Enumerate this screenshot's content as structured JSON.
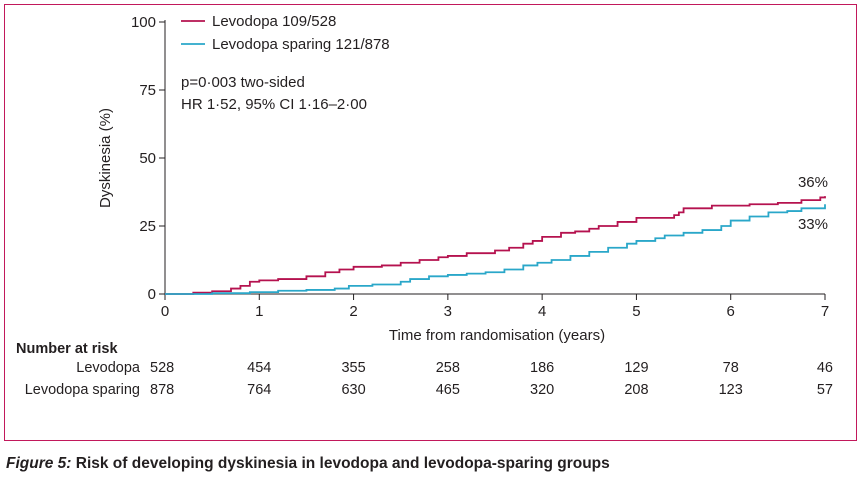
{
  "chart_data": {
    "type": "line",
    "xlabel": "Time from randomisation (years)",
    "ylabel": "Dyskinesia (%)",
    "xlim": [
      0,
      7
    ],
    "ylim": [
      0,
      100
    ],
    "xticks": [
      0,
      1,
      2,
      3,
      4,
      5,
      6,
      7
    ],
    "yticks": [
      0,
      25,
      50,
      75,
      100
    ],
    "grid": false,
    "legend_position": "top-left",
    "annotations": [
      "p=0·003 two-sided",
      "HR 1·52, 95% CI 1·16–2·00"
    ],
    "end_labels": [
      "36%",
      "33%"
    ],
    "series": [
      {
        "name": "Levodopa 109/528",
        "color": "#b5124f",
        "x": [
          0,
          0.3,
          0.5,
          0.7,
          0.8,
          0.9,
          1.0,
          1.2,
          1.5,
          1.7,
          1.85,
          2.0,
          2.3,
          2.5,
          2.7,
          2.9,
          3.0,
          3.2,
          3.5,
          3.65,
          3.8,
          3.9,
          4.0,
          4.2,
          4.35,
          4.5,
          4.6,
          4.8,
          5.0,
          5.4,
          5.45,
          5.5,
          5.8,
          6.2,
          6.5,
          6.75,
          6.95,
          7.0
        ],
        "y": [
          0,
          0.5,
          1,
          2,
          3,
          4.5,
          5,
          5.5,
          6.5,
          8,
          9,
          10,
          10.5,
          11.5,
          12.5,
          13.5,
          14,
          15,
          16,
          17,
          18.5,
          19.5,
          21,
          22.5,
          23,
          24,
          25,
          26.5,
          28,
          29,
          30,
          31.5,
          32.5,
          33,
          33.5,
          34.5,
          35.5,
          36
        ]
      },
      {
        "name": "Levodopa sparing 121/878",
        "color": "#2aa7c9",
        "x": [
          0,
          0.5,
          0.9,
          1.2,
          1.5,
          1.8,
          1.95,
          2.2,
          2.5,
          2.6,
          2.8,
          3.0,
          3.2,
          3.4,
          3.6,
          3.8,
          3.95,
          4.1,
          4.3,
          4.5,
          4.7,
          4.9,
          5.0,
          5.2,
          5.3,
          5.5,
          5.7,
          5.9,
          6.0,
          6.2,
          6.4,
          6.6,
          6.75,
          7.0
        ],
        "y": [
          0,
          0.3,
          0.7,
          1.2,
          1.5,
          2,
          3,
          3.5,
          4.5,
          5.5,
          6.5,
          7,
          7.5,
          8,
          9,
          10.5,
          11.5,
          12.5,
          14,
          15.5,
          17,
          18.5,
          19.5,
          20.5,
          21.5,
          22.5,
          23.5,
          25,
          27,
          28.5,
          30,
          30.5,
          31.5,
          33
        ]
      }
    ]
  },
  "risk_table": {
    "heading": "Number at risk",
    "rows": [
      {
        "label": "Levodopa",
        "values": [
          "528",
          "454",
          "355",
          "258",
          "186",
          "129",
          "78",
          "46"
        ]
      },
      {
        "label": "Levodopa sparing",
        "values": [
          "878",
          "764",
          "630",
          "465",
          "320",
          "208",
          "123",
          "57"
        ]
      }
    ]
  },
  "caption": {
    "prefix": "Figure 5:",
    "text": " Risk of developing dyskinesia in levodopa and levodopa-sparing groups"
  }
}
